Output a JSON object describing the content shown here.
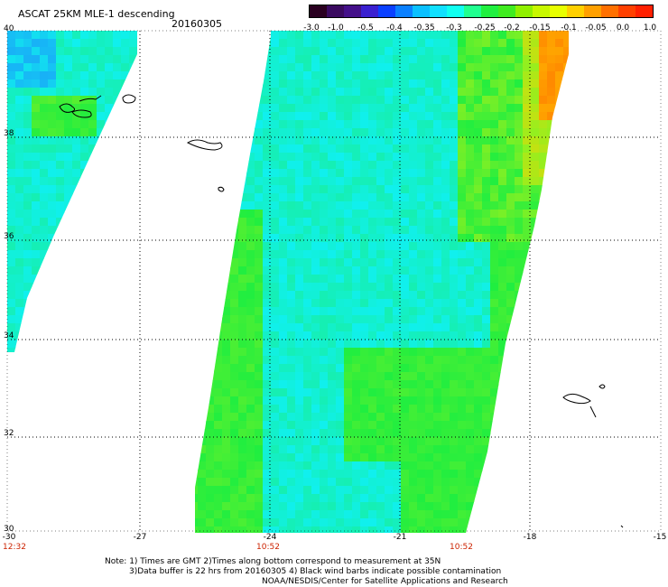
{
  "title": "ASCAT 25KM MLE-1 descending",
  "date": "20160305",
  "colorbar": {
    "labels": [
      "-3.0",
      "-1.0",
      "-0.5",
      "-0.4",
      "-0.35",
      "-0.3",
      "-0.25",
      "-0.2",
      "-0.15",
      "-0.1",
      "-0.05",
      "0.0",
      "1.0"
    ],
    "colors": [
      "#2a0020",
      "#44108a",
      "#3a20d0",
      "#0a60ff",
      "#0aa0ff",
      "#10e0ff",
      "#20ff80",
      "#20e830",
      "#90f000",
      "#e8ff00",
      "#ffb000",
      "#ff6a00",
      "#ff2000"
    ]
  },
  "axes": {
    "y_labels": [
      "40",
      "38",
      "36",
      "34",
      "32",
      "30"
    ],
    "x_labels": [
      "-30",
      "-27",
      "-24",
      "-21",
      "-18",
      "-15"
    ],
    "time_labels": [
      "12:32",
      "10:52",
      "10:52"
    ]
  },
  "notes": [
    "Note: 1) Times are GMT 2)Times along bottom correspond to measurement at 35N",
    "3)Data buffer is 22 hrs from 20160305 4) Black wind barbs indicate possible contamination",
    "NOAA/NESDIS/Center for Satellite Applications and Research"
  ],
  "colors": {
    "cyan": "#10f0ee",
    "green": "#20ee40",
    "lime": "#90f020",
    "orange": "#ff8800",
    "blue": "#2070ff"
  }
}
